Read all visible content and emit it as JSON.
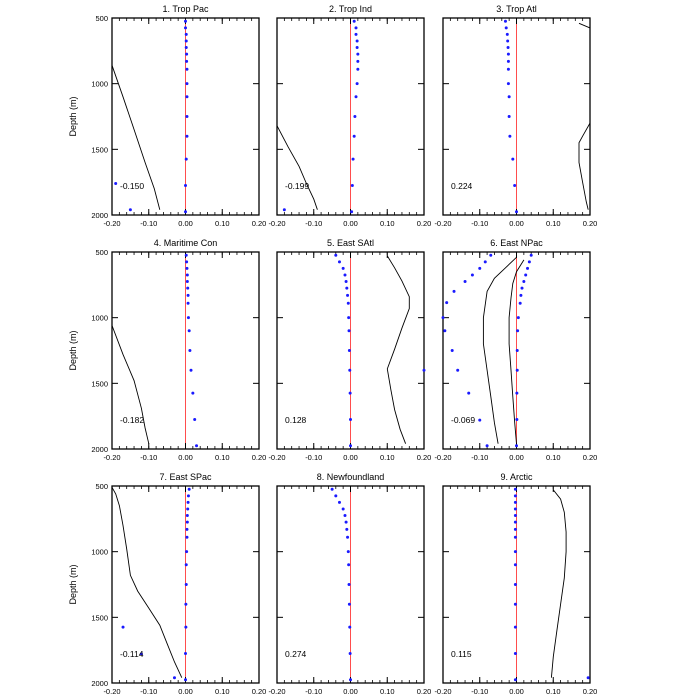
{
  "chart_data": {
    "type": "line",
    "ylabel": "Depth (m)",
    "y_ticks": [
      "500",
      "1000",
      "1500",
      "2000"
    ],
    "ylim": [
      2000,
      500
    ],
    "y_reversed": true,
    "x_ticks": [
      "-0.20",
      "-0.10",
      "0.00",
      "0.10",
      "0.20"
    ],
    "xlim": [
      -0.2,
      0.2
    ],
    "series_styles": {
      "line": {
        "color": "#000000"
      },
      "dots": {
        "color": "#1a1aff"
      },
      "zero_line": {
        "color": "#ff4d4d"
      }
    },
    "panels": [
      {
        "title": "1. Trop Pac",
        "annotation": "-0.150",
        "line": [
          [
            -0.2,
            860
          ],
          [
            -0.17,
            1100
          ],
          [
            -0.14,
            1350
          ],
          [
            -0.11,
            1600
          ],
          [
            -0.085,
            1800
          ],
          [
            -0.07,
            1960
          ]
        ],
        "dots": [
          [
            0.0,
            525
          ],
          [
            0.0,
            575
          ],
          [
            0.002,
            625
          ],
          [
            0.002,
            675
          ],
          [
            0.002,
            725
          ],
          [
            0.003,
            775
          ],
          [
            0.003,
            830
          ],
          [
            0.004,
            890
          ],
          [
            0.004,
            1000
          ],
          [
            0.004,
            1100
          ],
          [
            0.004,
            1250
          ],
          [
            0.004,
            1400
          ],
          [
            0.002,
            1575
          ],
          [
            0.0,
            1775
          ],
          [
            -0.19,
            1760
          ],
          [
            -0.15,
            1960
          ],
          [
            0.0,
            1975
          ]
        ]
      },
      {
        "title": "2. Trop Ind",
        "annotation": "-0.199",
        "line": [
          [
            -0.2,
            1320
          ],
          [
            -0.17,
            1480
          ],
          [
            -0.14,
            1630
          ],
          [
            -0.12,
            1760
          ],
          [
            -0.1,
            1880
          ],
          [
            -0.09,
            1960
          ]
        ],
        "dots": [
          [
            0.01,
            525
          ],
          [
            0.015,
            575
          ],
          [
            0.015,
            625
          ],
          [
            0.018,
            675
          ],
          [
            0.018,
            725
          ],
          [
            0.02,
            775
          ],
          [
            0.02,
            830
          ],
          [
            0.02,
            890
          ],
          [
            0.018,
            1000
          ],
          [
            0.015,
            1100
          ],
          [
            0.012,
            1250
          ],
          [
            0.01,
            1400
          ],
          [
            0.007,
            1575
          ],
          [
            0.005,
            1775
          ],
          [
            0.003,
            1975
          ],
          [
            -0.18,
            1960
          ]
        ]
      },
      {
        "title": "3. Trop Atl",
        "annotation": "0.224",
        "line_segments": [
          [
            [
              0.17,
              540
            ],
            [
              0.2,
              575
            ]
          ],
          [
            [
              0.2,
              1300
            ],
            [
              0.18,
              1400
            ],
            [
              0.17,
              1450
            ],
            [
              0.17,
              1600
            ],
            [
              0.18,
              1750
            ],
            [
              0.19,
              1900
            ],
            [
              0.195,
              1960
            ]
          ]
        ],
        "dots": [
          [
            -0.03,
            525
          ],
          [
            -0.028,
            575
          ],
          [
            -0.025,
            625
          ],
          [
            -0.024,
            675
          ],
          [
            -0.023,
            725
          ],
          [
            -0.022,
            775
          ],
          [
            -0.022,
            830
          ],
          [
            -0.022,
            890
          ],
          [
            -0.022,
            1000
          ],
          [
            -0.02,
            1100
          ],
          [
            -0.02,
            1250
          ],
          [
            -0.018,
            1400
          ],
          [
            -0.01,
            1575
          ],
          [
            -0.005,
            1775
          ],
          [
            0.0,
            1975
          ]
        ]
      },
      {
        "title": "4. Maritime Con",
        "annotation": "-0.182",
        "line": [
          [
            -0.2,
            1060
          ],
          [
            -0.17,
            1280
          ],
          [
            -0.14,
            1480
          ],
          [
            -0.12,
            1690
          ],
          [
            -0.11,
            1840
          ],
          [
            -0.1,
            1960
          ]
        ],
        "dots": [
          [
            0.002,
            525
          ],
          [
            0.003,
            575
          ],
          [
            0.004,
            625
          ],
          [
            0.005,
            675
          ],
          [
            0.005,
            725
          ],
          [
            0.006,
            775
          ],
          [
            0.007,
            830
          ],
          [
            0.007,
            890
          ],
          [
            0.008,
            1000
          ],
          [
            0.01,
            1100
          ],
          [
            0.012,
            1250
          ],
          [
            0.015,
            1400
          ],
          [
            0.02,
            1575
          ],
          [
            0.025,
            1775
          ],
          [
            0.03,
            1975
          ]
        ]
      },
      {
        "title": "5. East SAtl",
        "annotation": "0.128",
        "line": [
          [
            0.1,
            530
          ],
          [
            0.12,
            620
          ],
          [
            0.14,
            720
          ],
          [
            0.16,
            840
          ],
          [
            0.16,
            930
          ],
          [
            0.14,
            1080
          ],
          [
            0.12,
            1240
          ],
          [
            0.1,
            1390
          ],
          [
            0.11,
            1550
          ],
          [
            0.12,
            1700
          ],
          [
            0.135,
            1850
          ],
          [
            0.15,
            1960
          ]
        ],
        "dots": [
          [
            -0.04,
            525
          ],
          [
            -0.03,
            575
          ],
          [
            -0.02,
            625
          ],
          [
            -0.015,
            675
          ],
          [
            -0.012,
            725
          ],
          [
            -0.01,
            775
          ],
          [
            -0.008,
            830
          ],
          [
            -0.006,
            890
          ],
          [
            -0.005,
            1000
          ],
          [
            -0.004,
            1100
          ],
          [
            -0.003,
            1250
          ],
          [
            -0.002,
            1400
          ],
          [
            -0.001,
            1575
          ],
          [
            0.0,
            1775
          ],
          [
            0.0,
            1975
          ],
          [
            0.2,
            1400
          ]
        ]
      },
      {
        "title": "6. East NPac",
        "annotation": "-0.069",
        "line_segments": [
          [
            [
              0.0,
              540
            ],
            [
              -0.03,
              620
            ],
            [
              -0.06,
              700
            ],
            [
              -0.08,
              800
            ],
            [
              -0.09,
              1000
            ],
            [
              -0.09,
              1200
            ],
            [
              -0.08,
              1400
            ],
            [
              -0.07,
              1600
            ],
            [
              -0.06,
              1800
            ],
            [
              -0.05,
              1960
            ]
          ],
          [
            [
              0.02,
              560
            ],
            [
              0.0,
              650
            ],
            [
              -0.01,
              740
            ],
            [
              -0.015,
              850
            ],
            [
              -0.02,
              1000
            ],
            [
              -0.02,
              1200
            ],
            [
              -0.015,
              1400
            ],
            [
              -0.01,
              1600
            ],
            [
              -0.005,
              1800
            ],
            [
              0.0,
              1960
            ]
          ]
        ],
        "dots": [
          [
            -0.07,
            525
          ],
          [
            -0.085,
            575
          ],
          [
            -0.1,
            625
          ],
          [
            -0.12,
            675
          ],
          [
            -0.14,
            725
          ],
          [
            -0.17,
            800
          ],
          [
            -0.19,
            885
          ],
          [
            -0.2,
            1000
          ],
          [
            -0.195,
            1100
          ],
          [
            -0.175,
            1250
          ],
          [
            -0.16,
            1400
          ],
          [
            -0.13,
            1575
          ],
          [
            -0.1,
            1780
          ],
          [
            -0.08,
            1975
          ],
          [
            0.04,
            525
          ],
          [
            0.035,
            575
          ],
          [
            0.03,
            625
          ],
          [
            0.025,
            675
          ],
          [
            0.02,
            725
          ],
          [
            0.015,
            775
          ],
          [
            0.012,
            830
          ],
          [
            0.01,
            890
          ],
          [
            0.005,
            1000
          ],
          [
            0.003,
            1100
          ],
          [
            0.002,
            1250
          ],
          [
            0.002,
            1400
          ],
          [
            0.001,
            1575
          ],
          [
            0.001,
            1775
          ],
          [
            0.0,
            1975
          ]
        ]
      },
      {
        "title": "7. East SPac",
        "annotation": "-0.114",
        "line": [
          [
            -0.2,
            510
          ],
          [
            -0.19,
            560
          ],
          [
            -0.18,
            650
          ],
          [
            -0.17,
            800
          ],
          [
            -0.16,
            980
          ],
          [
            -0.15,
            1180
          ],
          [
            -0.13,
            1300
          ],
          [
            -0.1,
            1430
          ],
          [
            -0.07,
            1560
          ],
          [
            -0.05,
            1700
          ],
          [
            -0.03,
            1840
          ],
          [
            -0.01,
            1960
          ]
        ],
        "dots": [
          [
            0.01,
            525
          ],
          [
            0.008,
            575
          ],
          [
            0.007,
            625
          ],
          [
            0.006,
            675
          ],
          [
            0.005,
            725
          ],
          [
            0.005,
            775
          ],
          [
            0.004,
            830
          ],
          [
            0.004,
            890
          ],
          [
            0.003,
            1000
          ],
          [
            0.002,
            1100
          ],
          [
            0.002,
            1250
          ],
          [
            0.001,
            1400
          ],
          [
            0.001,
            1575
          ],
          [
            0.0,
            1775
          ],
          [
            0.0,
            1975
          ],
          [
            -0.17,
            1575
          ],
          [
            -0.12,
            1780
          ],
          [
            -0.03,
            1960
          ]
        ]
      },
      {
        "title": "8. Newfoundland",
        "annotation": "0.274",
        "line": [],
        "dots": [
          [
            -0.05,
            525
          ],
          [
            -0.04,
            575
          ],
          [
            -0.03,
            625
          ],
          [
            -0.02,
            675
          ],
          [
            -0.015,
            725
          ],
          [
            -0.012,
            775
          ],
          [
            -0.01,
            830
          ],
          [
            -0.008,
            890
          ],
          [
            -0.006,
            1000
          ],
          [
            -0.005,
            1100
          ],
          [
            -0.004,
            1250
          ],
          [
            -0.003,
            1400
          ],
          [
            -0.002,
            1575
          ],
          [
            -0.001,
            1775
          ],
          [
            0.0,
            1975
          ]
        ]
      },
      {
        "title": "9. Arctic",
        "annotation": "0.115",
        "line": [
          [
            0.1,
            530
          ],
          [
            0.12,
            600
          ],
          [
            0.13,
            700
          ],
          [
            0.135,
            850
          ],
          [
            0.135,
            1000
          ],
          [
            0.13,
            1200
          ],
          [
            0.12,
            1400
          ],
          [
            0.11,
            1600
          ],
          [
            0.1,
            1800
          ],
          [
            0.095,
            1960
          ]
        ],
        "dots": [
          [
            -0.003,
            525
          ],
          [
            -0.003,
            575
          ],
          [
            -0.003,
            625
          ],
          [
            -0.003,
            675
          ],
          [
            -0.003,
            725
          ],
          [
            -0.003,
            775
          ],
          [
            -0.003,
            830
          ],
          [
            -0.003,
            890
          ],
          [
            -0.003,
            1000
          ],
          [
            -0.003,
            1100
          ],
          [
            -0.003,
            1250
          ],
          [
            -0.003,
            1400
          ],
          [
            -0.003,
            1575
          ],
          [
            -0.003,
            1775
          ],
          [
            -0.003,
            1975
          ],
          [
            0.195,
            1960
          ]
        ]
      }
    ]
  }
}
